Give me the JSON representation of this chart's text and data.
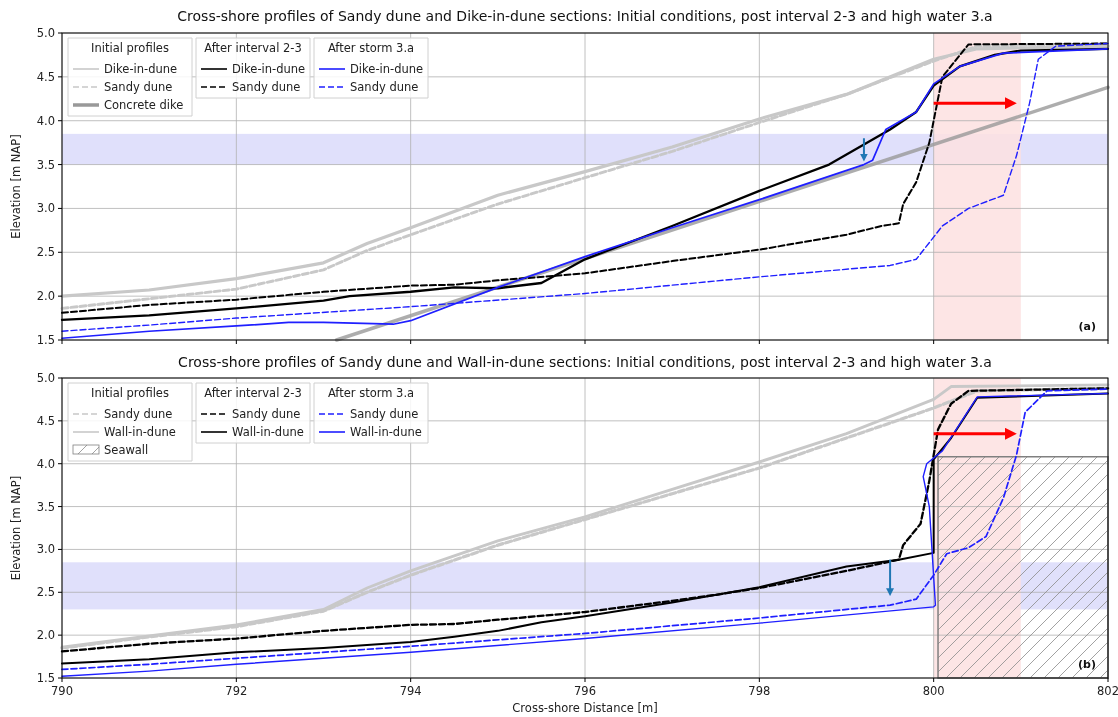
{
  "chart_data": [
    {
      "type": "line",
      "title": "Cross-shore profiles of Sandy dune and Dike-in-dune sections: Initial conditions, post interval 2-3 and high water 3.a",
      "ylabel": "Elevation [m NAP]",
      "xlim": [
        790,
        802
      ],
      "ylim": [
        1.5,
        5.0
      ],
      "xticks": [
        790,
        792,
        794,
        796,
        798,
        800,
        802
      ],
      "yticks": [
        {
          "value": 1.5,
          "label": "1.5"
        },
        {
          "value": 2.0,
          "label": "2.0"
        },
        {
          "value": 2.5,
          "label": "2.5"
        },
        {
          "value": 3.0,
          "label": "3.0"
        },
        {
          "value": 3.5,
          "label": "3.5"
        },
        {
          "value": 4.0,
          "label": "4.0"
        },
        {
          "value": 4.5,
          "label": "4.5"
        },
        {
          "value": 5.0,
          "label": "5.0"
        }
      ],
      "tick_labels": "y",
      "grid": true,
      "legend": "top left",
      "annotations": [
        "Initial profiles",
        "After interval 2-3",
        "After storm 3.a",
        "(a)"
      ],
      "bands": [
        {
          "axis": "y",
          "from": 3.5,
          "to": 3.85,
          "color": "#e0e0fb"
        },
        {
          "axis": "x",
          "from": 800,
          "to": 801,
          "color": "#fde0e0"
        }
      ],
      "series": [
        {
          "name": "Dike-in-dune",
          "color": "#c8c8c8",
          "line_style": "solid",
          "x": [
            790,
            791,
            792,
            793,
            793.5,
            794,
            795,
            796,
            797,
            798,
            799,
            800,
            800.5,
            802
          ],
          "values": [
            2.0,
            2.07,
            2.2,
            2.38,
            2.6,
            2.78,
            3.15,
            3.42,
            3.7,
            4.02,
            4.3,
            4.7,
            4.82,
            4.85
          ]
        },
        {
          "name": "Sandy dune",
          "color": "#c8c8c8",
          "line_style": "dashed",
          "x": [
            790,
            791,
            792,
            793,
            793.5,
            794,
            795,
            796,
            797,
            798,
            799,
            800,
            800.5,
            802
          ],
          "values": [
            1.86,
            1.97,
            2.08,
            2.3,
            2.52,
            2.7,
            3.05,
            3.35,
            3.65,
            3.98,
            4.3,
            4.68,
            4.85,
            4.88
          ]
        },
        {
          "name": "Concrete dike",
          "color": "#999999",
          "line_style": "solid",
          "x": [
            793.15,
            802
          ],
          "values": [
            1.5,
            4.38
          ]
        },
        {
          "name": "Dike-in-dune",
          "color": "#000000",
          "line_style": "solid",
          "x": [
            790,
            791,
            792,
            793,
            793.3,
            794,
            794.5,
            795,
            795.5,
            796,
            797,
            798,
            798.8,
            799.5,
            799.8,
            800,
            800.3,
            800.7,
            801,
            802
          ],
          "values": [
            1.73,
            1.78,
            1.86,
            1.95,
            2.0,
            2.05,
            2.1,
            2.09,
            2.15,
            2.42,
            2.8,
            3.2,
            3.5,
            3.9,
            4.1,
            4.4,
            4.62,
            4.75,
            4.8,
            4.82
          ]
        },
        {
          "name": "Sandy dune",
          "color": "#000000",
          "line_style": "dashed",
          "x": [
            790,
            791,
            792,
            793,
            794,
            794.5,
            795,
            796,
            797,
            798,
            799,
            799.4,
            799.6,
            799.65,
            799.8,
            799.95,
            800.1,
            800.4,
            802
          ],
          "values": [
            1.81,
            1.9,
            1.96,
            2.05,
            2.12,
            2.13,
            2.18,
            2.26,
            2.4,
            2.53,
            2.7,
            2.8,
            2.83,
            3.05,
            3.3,
            3.75,
            4.5,
            4.87,
            4.88
          ]
        },
        {
          "name": "Dike-in-dune",
          "color": "#1f1fff",
          "line_style": "solid",
          "x": [
            790,
            791,
            792,
            792.6,
            793,
            793.8,
            794,
            795,
            796,
            797,
            798,
            799.2,
            799.3,
            799.45,
            799.8,
            800,
            800.3,
            800.8,
            802
          ],
          "values": [
            1.52,
            1.6,
            1.66,
            1.7,
            1.7,
            1.68,
            1.72,
            2.1,
            2.45,
            2.78,
            3.1,
            3.5,
            3.55,
            3.9,
            4.1,
            4.42,
            4.62,
            4.77,
            4.82
          ]
        },
        {
          "name": "Sandy dune",
          "color": "#1f1fff",
          "line_style": "dashed",
          "x": [
            790,
            791,
            792,
            794,
            796,
            798,
            799.5,
            799.8,
            800.1,
            800.4,
            800.8,
            800.95,
            801.1,
            801.2,
            801.4,
            802
          ],
          "values": [
            1.6,
            1.67,
            1.75,
            1.88,
            2.03,
            2.22,
            2.35,
            2.42,
            2.8,
            3.0,
            3.15,
            3.6,
            4.2,
            4.7,
            4.85,
            4.88
          ]
        }
      ]
    },
    {
      "type": "line",
      "title": "Cross-shore profiles of Sandy dune and Wall-in-dune sections: Initial conditions, post interval 2-3 and high water 3.a",
      "xlabel": "Cross-shore Distance [m]",
      "ylabel": "Elevation [m NAP]",
      "xlim": [
        790,
        802
      ],
      "ylim": [
        1.5,
        5.0
      ],
      "xticks": [
        790,
        792,
        794,
        796,
        798,
        800,
        802
      ],
      "yticks": [
        {
          "value": 1.5,
          "label": "1.5"
        },
        {
          "value": 2.0,
          "label": "2.0"
        },
        {
          "value": 2.5,
          "label": "2.5"
        },
        {
          "value": 3.0,
          "label": "3.0"
        },
        {
          "value": 3.5,
          "label": "3.5"
        },
        {
          "value": 4.0,
          "label": "4.0"
        },
        {
          "value": 4.5,
          "label": "4.5"
        },
        {
          "value": 5.0,
          "label": "5.0"
        }
      ],
      "grid": true,
      "legend": "top left",
      "annotations": [
        "Initial profiles",
        "After interval 2-3",
        "After storm 3.a",
        "(b)"
      ],
      "bands": [
        {
          "axis": "y",
          "from": 2.3,
          "to": 2.85,
          "color": "#e0e0fb"
        },
        {
          "axis": "x",
          "from": 800,
          "to": 801,
          "color": "#fde0e0"
        }
      ],
      "series": [
        {
          "name": "Sandy dune",
          "color": "#c8c8c8",
          "line_style": "dashed",
          "x": [
            790,
            791,
            792,
            793,
            793.5,
            794,
            795,
            796,
            797,
            798,
            799,
            800,
            800.5,
            802
          ],
          "values": [
            1.85,
            1.98,
            2.1,
            2.28,
            2.5,
            2.7,
            3.05,
            3.35,
            3.65,
            3.95,
            4.3,
            4.65,
            4.85,
            4.88
          ]
        },
        {
          "name": "Wall-in-dune",
          "color": "#c8c8c8",
          "line_style": "solid",
          "x": [
            790,
            791,
            792,
            793,
            793.5,
            794,
            795,
            796,
            797,
            798,
            799,
            800,
            800.2,
            802
          ],
          "values": [
            1.86,
            1.99,
            2.12,
            2.3,
            2.55,
            2.75,
            3.1,
            3.38,
            3.7,
            4.02,
            4.35,
            4.75,
            4.9,
            4.92
          ]
        },
        {
          "name": "Seawall",
          "type": "area",
          "color": "#808080",
          "x": [
            800.05,
            802
          ],
          "values": [
            4.08,
            4.08
          ]
        },
        {
          "name": "Sandy dune",
          "color": "#000000",
          "line_style": "dashed",
          "x": [
            790,
            791,
            792,
            793,
            794,
            794.5,
            795,
            796,
            797,
            797.5,
            798,
            799,
            799.6,
            799.65,
            799.85,
            799.95,
            800.05,
            800.2,
            800.4,
            802
          ],
          "values": [
            1.81,
            1.9,
            1.96,
            2.05,
            2.12,
            2.13,
            2.18,
            2.27,
            2.4,
            2.47,
            2.55,
            2.75,
            2.88,
            3.05,
            3.3,
            3.8,
            4.4,
            4.7,
            4.85,
            4.88
          ]
        },
        {
          "name": "Wall-in-dune",
          "color": "#000000",
          "line_style": "solid",
          "x": [
            790,
            791,
            792,
            793,
            794,
            794.5,
            795,
            795.5,
            796,
            797,
            798,
            799,
            799.6,
            800,
            800,
            800.2,
            800.5,
            802
          ],
          "values": [
            1.67,
            1.72,
            1.8,
            1.85,
            1.92,
            1.98,
            2.05,
            2.15,
            2.22,
            2.38,
            2.56,
            2.8,
            2.88,
            2.96,
            4.05,
            4.3,
            4.77,
            4.82
          ]
        },
        {
          "name": "Sandy dune",
          "color": "#1f1fff",
          "line_style": "dashed",
          "x": [
            790,
            791,
            792,
            794,
            796,
            798,
            799.5,
            799.8,
            800,
            800.15,
            800.4,
            800.6,
            800.8,
            800.95,
            801.05,
            801.3,
            802
          ],
          "values": [
            1.6,
            1.66,
            1.73,
            1.87,
            2.02,
            2.2,
            2.35,
            2.42,
            2.7,
            2.95,
            3.02,
            3.15,
            3.6,
            4.1,
            4.6,
            4.85,
            4.87
          ]
        },
        {
          "name": "Wall-in-dune",
          "color": "#1f1fff",
          "line_style": "solid",
          "x": [
            790,
            791,
            792,
            794,
            796,
            798,
            800,
            800.02,
            799.95,
            799.88,
            799.92,
            800.1,
            800.5,
            802
          ],
          "values": [
            1.52,
            1.58,
            1.66,
            1.8,
            1.96,
            2.14,
            2.33,
            2.35,
            3.5,
            3.85,
            4.0,
            4.15,
            4.78,
            4.82
          ]
        }
      ]
    }
  ]
}
